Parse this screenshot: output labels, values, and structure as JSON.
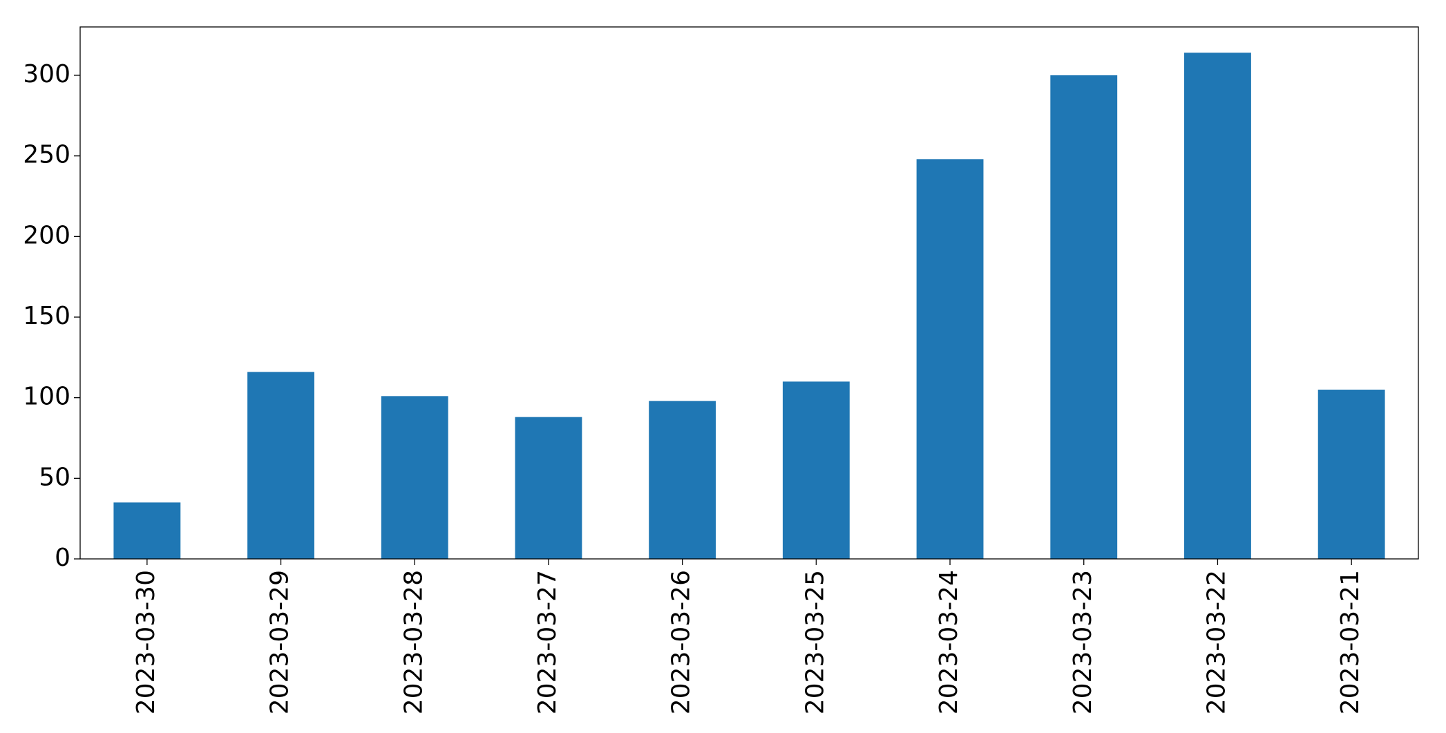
{
  "chart_data": {
    "type": "bar",
    "categories": [
      "2023-03-30",
      "2023-03-29",
      "2023-03-28",
      "2023-03-27",
      "2023-03-26",
      "2023-03-25",
      "2023-03-24",
      "2023-03-23",
      "2023-03-22",
      "2023-03-21"
    ],
    "values": [
      35,
      116,
      101,
      88,
      98,
      110,
      248,
      300,
      314,
      105
    ],
    "color": "#1f77b4",
    "ylim": [
      0,
      330
    ],
    "yticks": [
      0,
      50,
      100,
      150,
      200,
      250,
      300
    ],
    "grid": false
  }
}
